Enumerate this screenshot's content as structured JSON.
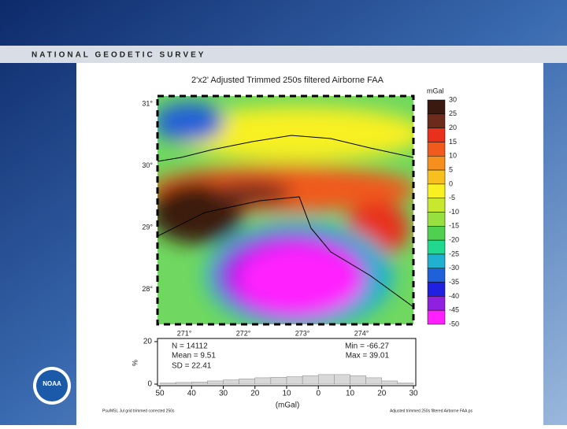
{
  "header": {
    "title": "NATIONAL GEODETIC SURVEY",
    "logo": "NOAA"
  },
  "map": {
    "title": "2'x2' Adjusted Trimmed 250s filtered Airborne FAA",
    "lat_labels": [
      "31°",
      "30°",
      "29°",
      "28°"
    ],
    "lon_labels": [
      "271°",
      "272°",
      "273°",
      "274°"
    ]
  },
  "colorbar": {
    "unit": "mGal",
    "ticks": [
      30,
      25,
      20,
      15,
      10,
      5,
      0,
      -5,
      -10,
      -15,
      -20,
      -25,
      -30,
      -35,
      -40,
      -45,
      -50
    ],
    "colors": [
      "#3a1a10",
      "#6b2a1a",
      "#e8301c",
      "#f05a1c",
      "#f59020",
      "#f8c01e",
      "#f8f020",
      "#c8e830",
      "#98e040",
      "#50d050",
      "#20d890",
      "#20b0d0",
      "#2060d8",
      "#2020e0",
      "#9020e0",
      "#ff20ff"
    ]
  },
  "chart_data": {
    "type": "histogram",
    "ylabel": "%",
    "xlabel": "(mGal)",
    "bins": [
      -50,
      -45,
      -40,
      -35,
      -30,
      -25,
      -20,
      -15,
      -10,
      -5,
      0,
      5,
      10,
      15,
      20,
      25,
      30
    ],
    "values": [
      0.5,
      0.8,
      1,
      1.5,
      2,
      2.5,
      3,
      3.2,
      3.5,
      4,
      4.5,
      4.5,
      4,
      3,
      1.5,
      0.5
    ],
    "color": "#d8d8d8",
    "xlim": [
      -50,
      30
    ],
    "xticks": [
      {
        "value": -50,
        "label": "50"
      },
      {
        "value": -40,
        "label": "40"
      },
      {
        "value": -30,
        "label": "30"
      },
      {
        "value": -20,
        "label": "20"
      },
      {
        "value": -10,
        "label": "10"
      },
      0,
      10,
      20,
      30
    ],
    "ylim": [
      0,
      20
    ],
    "yticks": [
      0,
      20
    ],
    "stats": [
      "N = 14112",
      "Mean = 9.51",
      "SD = 22.41",
      "Min = -66.27",
      "Max = 39.01"
    ]
  },
  "footer": {
    "left": "Psu/MSL Jul grid trimmed corrected 250s",
    "right": "Adjusted trimmed 250s filtered Airborne FAA.ps"
  }
}
